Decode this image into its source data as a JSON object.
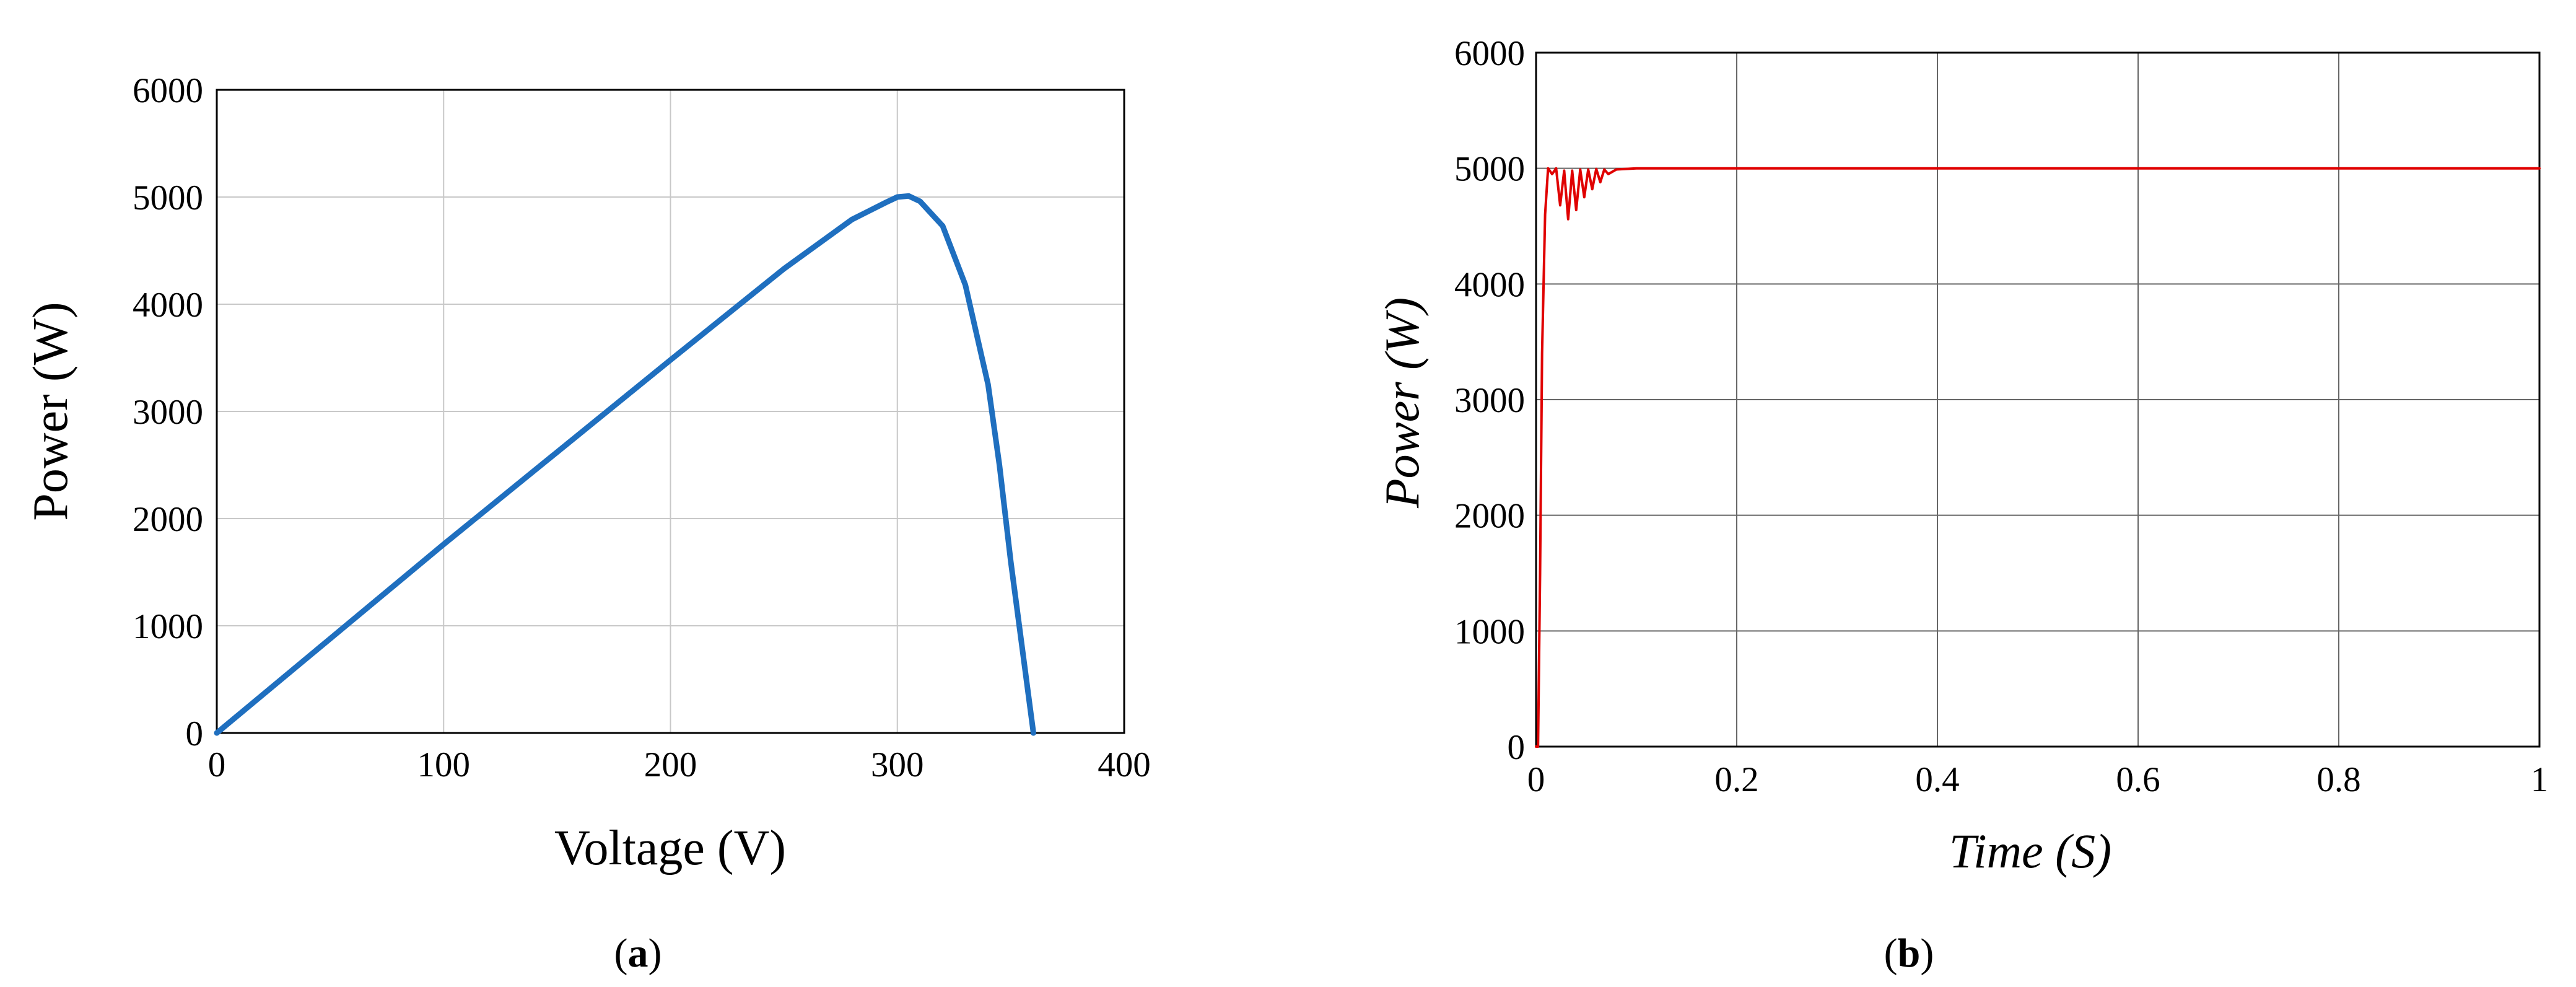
{
  "chart_data": [
    {
      "type": "line",
      "panel_label": "a",
      "xlabel": "Voltage (V)",
      "ylabel": "Power (W)",
      "xlim": [
        0,
        400
      ],
      "ylim": [
        0,
        6000
      ],
      "xticks": [
        0,
        100,
        200,
        300,
        400
      ],
      "yticks": [
        0,
        1000,
        2000,
        3000,
        4000,
        5000,
        6000
      ],
      "grid": true,
      "line_color": "#1f6fbf",
      "series": [
        {
          "x": [
            0,
            50,
            100,
            150,
            200,
            250,
            280,
            295,
            300,
            305,
            310,
            320,
            330,
            340,
            345,
            350,
            355,
            360
          ],
          "y": [
            0,
            880,
            1760,
            2620,
            3480,
            4330,
            4790,
            4950,
            5000,
            5010,
            4960,
            4730,
            4180,
            3250,
            2500,
            1600,
            800,
            0
          ]
        }
      ]
    },
    {
      "type": "line",
      "panel_label": "b",
      "xlabel": "Time (S)",
      "ylabel": "Power (W)",
      "xlim": [
        0,
        1
      ],
      "ylim": [
        0,
        6000
      ],
      "xticks": [
        0,
        0.2,
        0.4,
        0.6,
        0.8,
        1
      ],
      "yticks": [
        0,
        1000,
        2000,
        3000,
        4000,
        5000,
        6000
      ],
      "grid": true,
      "line_color": "#e00000",
      "series": [
        {
          "x": [
            0,
            0.002,
            0.004,
            0.006,
            0.009,
            0.012,
            0.016,
            0.02,
            0.024,
            0.028,
            0.032,
            0.036,
            0.04,
            0.044,
            0.048,
            0.052,
            0.056,
            0.06,
            0.064,
            0.068,
            0.072,
            0.08,
            0.1,
            0.3,
            0.5,
            0.7,
            0.9,
            1
          ],
          "y": [
            0,
            0,
            1500,
            3400,
            4600,
            5000,
            4950,
            5000,
            4680,
            4980,
            4560,
            4980,
            4640,
            4990,
            4750,
            4990,
            4820,
            4995,
            4880,
            4990,
            4950,
            4990,
            5000,
            5000,
            5000,
            5000,
            5000,
            5000
          ]
        }
      ]
    }
  ],
  "captions": {
    "a": {
      "open": "(",
      "label": "a",
      "close": ")"
    },
    "b": {
      "open": "(",
      "label": "b",
      "close": ")"
    }
  }
}
